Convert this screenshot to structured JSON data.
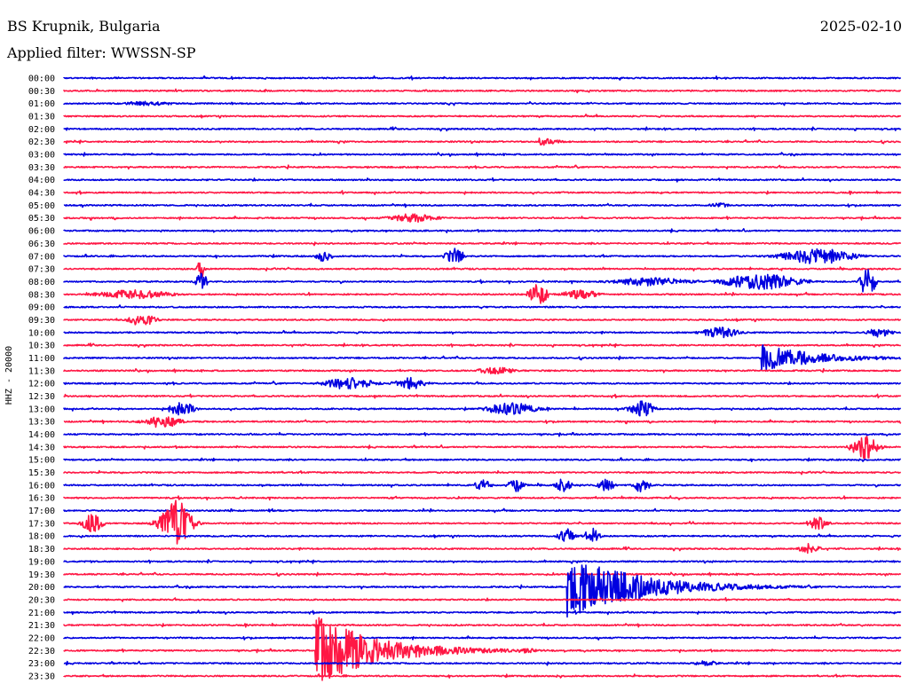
{
  "header": {
    "station": "BS Krupnik, Bulgaria",
    "date": "2025-02-10",
    "filter_label": "Applied filter: WWSSN-SP"
  },
  "channel_label": "HHZ - 20000",
  "colors": {
    "trace_even": "#0000e0",
    "trace_odd": "#ff1744",
    "background": "#ffffff",
    "text": "#000000"
  },
  "chart_data": {
    "type": "line",
    "title": "BS Krupnik, Bulgaria",
    "subtitle": "Applied filter: WWSSN-SP",
    "ylabel": "HHZ - 20000",
    "row_labels": [
      "00:00",
      "00:30",
      "01:00",
      "01:30",
      "02:00",
      "02:30",
      "03:00",
      "03:30",
      "04:00",
      "04:30",
      "05:00",
      "05:30",
      "06:00",
      "06:30",
      "07:00",
      "07:30",
      "08:00",
      "08:30",
      "09:00",
      "09:30",
      "10:00",
      "10:30",
      "11:00",
      "11:30",
      "12:00",
      "12:30",
      "13:00",
      "13:30",
      "14:00",
      "14:30",
      "15:00",
      "15:30",
      "16:00",
      "16:30",
      "17:00",
      "17:30",
      "18:00",
      "18:30",
      "19:00",
      "19:30",
      "20:00",
      "20:30",
      "21:00",
      "21:30",
      "22:00",
      "22:30",
      "23:00",
      "23:30"
    ],
    "row_minutes": 30,
    "events": [
      {
        "row": "01:00",
        "minute": 3.0,
        "amplitude": 2.5,
        "duration": 2.0,
        "type": "burst"
      },
      {
        "row": "02:30",
        "minute": 17.0,
        "amplitude": 6,
        "duration": 1.0,
        "type": "quake"
      },
      {
        "row": "05:00",
        "minute": 23.5,
        "amplitude": 2.5,
        "duration": 1.0,
        "type": "burst"
      },
      {
        "row": "05:30",
        "minute": 12.5,
        "amplitude": 5,
        "duration": 2.0,
        "type": "burst"
      },
      {
        "row": "07:00",
        "minute": 9.3,
        "amplitude": 8,
        "duration": 0.4,
        "type": "spike"
      },
      {
        "row": "07:00",
        "minute": 14.0,
        "amplitude": 10,
        "duration": 0.5,
        "type": "spike"
      },
      {
        "row": "07:00",
        "minute": 27.0,
        "amplitude": 9,
        "duration": 2.8,
        "type": "burst"
      },
      {
        "row": "07:30",
        "minute": 4.9,
        "amplitude": 14,
        "duration": 0.2,
        "type": "spike"
      },
      {
        "row": "08:00",
        "minute": 4.9,
        "amplitude": 12,
        "duration": 0.3,
        "type": "spike"
      },
      {
        "row": "08:00",
        "minute": 21.0,
        "amplitude": 5,
        "duration": 3.0,
        "type": "burst"
      },
      {
        "row": "08:00",
        "minute": 25.0,
        "amplitude": 9,
        "duration": 3.0,
        "type": "burst"
      },
      {
        "row": "08:00",
        "minute": 28.8,
        "amplitude": 20,
        "duration": 0.4,
        "type": "spike"
      },
      {
        "row": "08:30",
        "minute": 2.5,
        "amplitude": 5,
        "duration": 3.0,
        "type": "burst"
      },
      {
        "row": "08:30",
        "minute": 17.0,
        "amplitude": 14,
        "duration": 0.5,
        "type": "spike"
      },
      {
        "row": "08:30",
        "minute": 18.5,
        "amplitude": 5,
        "duration": 1.5,
        "type": "burst"
      },
      {
        "row": "09:30",
        "minute": 2.8,
        "amplitude": 8,
        "duration": 1.0,
        "type": "burst"
      },
      {
        "row": "10:00",
        "minute": 23.5,
        "amplitude": 6,
        "duration": 1.5,
        "type": "burst"
      },
      {
        "row": "10:00",
        "minute": 29.2,
        "amplitude": 5,
        "duration": 1.0,
        "type": "burst"
      },
      {
        "row": "11:00",
        "minute": 25.0,
        "amplitude": 16,
        "duration": 3.5,
        "type": "quake"
      },
      {
        "row": "11:30",
        "minute": 15.5,
        "amplitude": 4,
        "duration": 1.5,
        "type": "burst"
      },
      {
        "row": "12:00",
        "minute": 10.2,
        "amplitude": 7,
        "duration": 2.0,
        "type": "burst"
      },
      {
        "row": "12:00",
        "minute": 12.4,
        "amplitude": 7,
        "duration": 1.2,
        "type": "burst"
      },
      {
        "row": "13:00",
        "minute": 16.0,
        "amplitude": 7,
        "duration": 2.0,
        "type": "burst"
      },
      {
        "row": "13:00",
        "minute": 20.7,
        "amplitude": 9,
        "duration": 1.0,
        "type": "burst"
      },
      {
        "row": "13:00",
        "minute": 4.2,
        "amplitude": 8,
        "duration": 1.0,
        "type": "burst"
      },
      {
        "row": "13:30",
        "minute": 3.5,
        "amplitude": 7,
        "duration": 1.5,
        "type": "burst"
      },
      {
        "row": "14:30",
        "minute": 28.7,
        "amplitude": 14,
        "duration": 1.0,
        "type": "burst"
      },
      {
        "row": "16:00",
        "minute": 15.0,
        "amplitude": 7,
        "duration": 0.6,
        "type": "burst"
      },
      {
        "row": "16:00",
        "minute": 16.2,
        "amplitude": 8,
        "duration": 0.6,
        "type": "burst"
      },
      {
        "row": "16:00",
        "minute": 17.9,
        "amplitude": 8,
        "duration": 0.6,
        "type": "burst"
      },
      {
        "row": "16:00",
        "minute": 19.4,
        "amplitude": 9,
        "duration": 0.6,
        "type": "burst"
      },
      {
        "row": "16:00",
        "minute": 20.7,
        "amplitude": 9,
        "duration": 0.6,
        "type": "burst"
      },
      {
        "row": "17:30",
        "minute": 1.0,
        "amplitude": 11,
        "duration": 0.8,
        "type": "burst"
      },
      {
        "row": "17:30",
        "minute": 4.0,
        "amplitude": 26,
        "duration": 1.2,
        "type": "burst"
      },
      {
        "row": "17:30",
        "minute": 27.0,
        "amplitude": 7,
        "duration": 0.8,
        "type": "burst"
      },
      {
        "row": "18:00",
        "minute": 18.0,
        "amplitude": 9,
        "duration": 0.6,
        "type": "burst"
      },
      {
        "row": "18:00",
        "minute": 18.9,
        "amplitude": 9,
        "duration": 0.6,
        "type": "burst"
      },
      {
        "row": "18:30",
        "minute": 26.7,
        "amplitude": 6,
        "duration": 0.8,
        "type": "burst"
      },
      {
        "row": "20:00",
        "minute": 18.0,
        "amplitude": 38,
        "duration": 4.5,
        "type": "quake"
      },
      {
        "row": "22:30",
        "minute": 9.0,
        "amplitude": 40,
        "duration": 4.0,
        "type": "quake"
      },
      {
        "row": "22:30",
        "minute": 16.5,
        "amplitude": 3,
        "duration": 1.0,
        "type": "burst"
      },
      {
        "row": "23:00",
        "minute": 23.0,
        "amplitude": 3,
        "duration": 1.0,
        "type": "burst"
      }
    ]
  }
}
